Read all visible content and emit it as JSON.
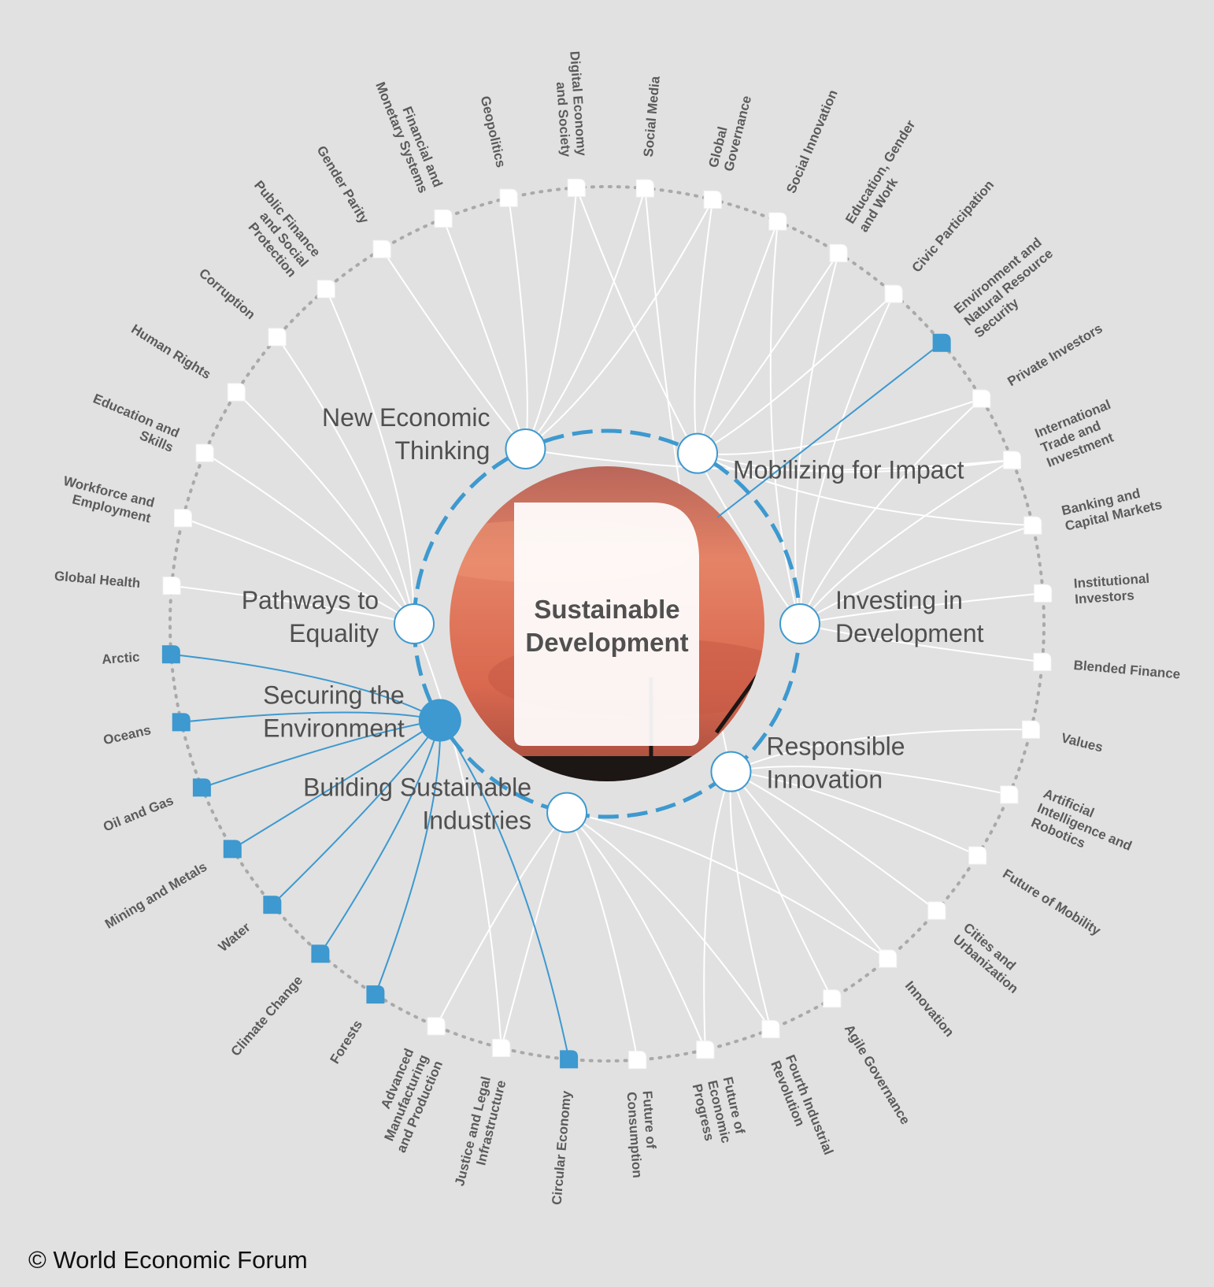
{
  "title": "Sustainable Development",
  "copyright": "© World Economic Forum",
  "colors": {
    "background": "#e1e1e1",
    "accent": "#3d99cf",
    "link": "#ffffff",
    "node_fill": "#ffffff",
    "ring_dots": "#a9a9a9",
    "label": "#5b5b5b",
    "hub_label": "#505050"
  },
  "hubs": [
    {
      "id": "net",
      "label": [
        "New Economic",
        "Thinking"
      ],
      "highlighted": false
    },
    {
      "id": "mob",
      "label": [
        "Mobilizing for Impact"
      ],
      "highlighted": false
    },
    {
      "id": "inv",
      "label": [
        "Investing in",
        "Development"
      ],
      "highlighted": false
    },
    {
      "id": "res",
      "label": [
        "Responsible",
        "Innovation"
      ],
      "highlighted": false
    },
    {
      "id": "bsi",
      "label": [
        "Building Sustainable",
        "Industries"
      ],
      "highlighted": false
    },
    {
      "id": "sec",
      "label": [
        "Securing the",
        "Environment"
      ],
      "highlighted": true
    },
    {
      "id": "pte",
      "label": [
        "Pathways to",
        "Equality"
      ],
      "highlighted": false
    }
  ],
  "topics": [
    {
      "label": [
        "Digital Economy",
        "and Society"
      ],
      "highlighted": false
    },
    {
      "label": [
        "Social Media"
      ],
      "highlighted": false
    },
    {
      "label": [
        "Global",
        "Governance"
      ],
      "highlighted": false
    },
    {
      "label": [
        "Social Innovation"
      ],
      "highlighted": false
    },
    {
      "label": [
        "Education, Gender",
        "and Work"
      ],
      "highlighted": false
    },
    {
      "label": [
        "Civic Participation"
      ],
      "highlighted": false
    },
    {
      "label": [
        "Environment and",
        "Natural Resource",
        "Security"
      ],
      "highlighted": true
    },
    {
      "label": [
        "Private Investors"
      ],
      "highlighted": false
    },
    {
      "label": [
        "International",
        "Trade and",
        "Investment"
      ],
      "highlighted": false
    },
    {
      "label": [
        "Banking and",
        "Capital Markets"
      ],
      "highlighted": false
    },
    {
      "label": [
        "Institutional",
        "Investors"
      ],
      "highlighted": false
    },
    {
      "label": [
        "Blended Finance"
      ],
      "highlighted": false
    },
    {
      "label": [
        "Values"
      ],
      "highlighted": false
    },
    {
      "label": [
        "Artificial",
        "Intelligence and",
        "Robotics"
      ],
      "highlighted": false
    },
    {
      "label": [
        "Future of Mobility"
      ],
      "highlighted": false
    },
    {
      "label": [
        "Cities and",
        "Urbanization"
      ],
      "highlighted": false
    },
    {
      "label": [
        "Innovation"
      ],
      "highlighted": false
    },
    {
      "label": [
        "Agile Governance"
      ],
      "highlighted": false
    },
    {
      "label": [
        "Fourth Industrial",
        "Revolution"
      ],
      "highlighted": false
    },
    {
      "label": [
        "Future of",
        "Economic",
        "Progress"
      ],
      "highlighted": false
    },
    {
      "label": [
        "Future of",
        "Consumption"
      ],
      "highlighted": false
    },
    {
      "label": [
        "Circular Economy"
      ],
      "highlighted": true
    },
    {
      "label": [
        "Justice and Legal",
        "Infrastructure"
      ],
      "highlighted": false
    },
    {
      "label": [
        "Advanced",
        "Manufacturing",
        "and Production"
      ],
      "highlighted": false
    },
    {
      "label": [
        "Forests"
      ],
      "highlighted": true
    },
    {
      "label": [
        "Climate Change"
      ],
      "highlighted": true
    },
    {
      "label": [
        "Water"
      ],
      "highlighted": true
    },
    {
      "label": [
        "Mining and Metals"
      ],
      "highlighted": true
    },
    {
      "label": [
        "Oil and Gas"
      ],
      "highlighted": true
    },
    {
      "label": [
        "Oceans"
      ],
      "highlighted": true
    },
    {
      "label": [
        "Arctic"
      ],
      "highlighted": true
    },
    {
      "label": [
        "Global Health"
      ],
      "highlighted": false
    },
    {
      "label": [
        "Workforce and",
        "Employment"
      ],
      "highlighted": false
    },
    {
      "label": [
        "Education and",
        "Skills"
      ],
      "highlighted": false
    },
    {
      "label": [
        "Human Rights"
      ],
      "highlighted": false
    },
    {
      "label": [
        "Corruption"
      ],
      "highlighted": false
    },
    {
      "label": [
        "Public Finance",
        "and Social",
        "Protection"
      ],
      "highlighted": false
    },
    {
      "label": [
        "Gender Parity"
      ],
      "highlighted": false
    },
    {
      "label": [
        "Financial and",
        "Monetary Systems"
      ],
      "highlighted": false
    },
    {
      "label": [
        "Geopolitics"
      ],
      "highlighted": false
    }
  ],
  "links": [
    [
      0,
      "net"
    ],
    [
      1,
      "net"
    ],
    [
      38,
      "net"
    ],
    [
      39,
      "net"
    ],
    [
      37,
      "net"
    ],
    [
      36,
      "pte"
    ],
    [
      35,
      "pte"
    ],
    [
      34,
      "pte"
    ],
    [
      33,
      "pte"
    ],
    [
      32,
      "pte"
    ],
    [
      31,
      "pte"
    ],
    [
      2,
      "mob"
    ],
    [
      3,
      "mob"
    ],
    [
      4,
      "mob"
    ],
    [
      5,
      "mob"
    ],
    [
      7,
      "mob"
    ],
    [
      8,
      "mob"
    ],
    [
      3,
      "inv"
    ],
    [
      4,
      "inv"
    ],
    [
      5,
      "inv"
    ],
    [
      7,
      "inv"
    ],
    [
      8,
      "inv"
    ],
    [
      9,
      "inv"
    ],
    [
      10,
      "inv"
    ],
    [
      11,
      "inv"
    ],
    [
      12,
      "res"
    ],
    [
      13,
      "res"
    ],
    [
      14,
      "res"
    ],
    [
      15,
      "res"
    ],
    [
      16,
      "res"
    ],
    [
      17,
      "res"
    ],
    [
      18,
      "res"
    ],
    [
      19,
      "res"
    ],
    [
      20,
      "bsi"
    ],
    [
      18,
      "bsi"
    ],
    [
      22,
      "bsi"
    ],
    [
      23,
      "bsi"
    ],
    [
      16,
      "bsi"
    ],
    [
      2,
      "net"
    ],
    [
      8,
      "net"
    ],
    [
      9,
      "mob"
    ],
    [
      1,
      "res"
    ],
    [
      22,
      "pte"
    ],
    [
      0,
      "inv"
    ],
    [
      19,
      "bsi"
    ]
  ],
  "accent_links": [
    [
      30,
      "sec"
    ],
    [
      29,
      "sec"
    ],
    [
      28,
      "sec"
    ],
    [
      27,
      "sec"
    ],
    [
      26,
      "sec"
    ],
    [
      25,
      "sec"
    ],
    [
      24,
      "sec"
    ],
    [
      21,
      "sec"
    ]
  ],
  "center_line_topic": 6
}
